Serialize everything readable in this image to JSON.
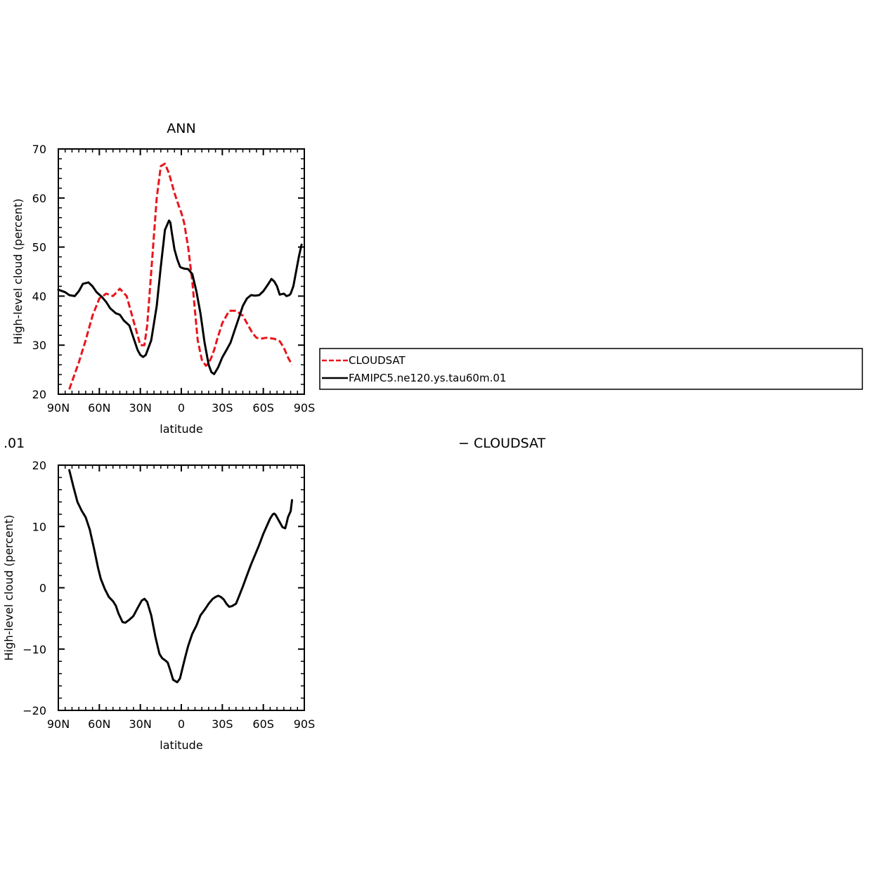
{
  "chart_data": [
    {
      "type": "line",
      "title": "ANN",
      "xlabel": "latitude",
      "ylabel": "High-level cloud (percent)",
      "xlim": [
        90,
        -90
      ],
      "ylim": [
        20,
        70
      ],
      "x_ticks": [
        90,
        60,
        30,
        0,
        -30,
        -60,
        -90
      ],
      "x_tick_labels": [
        "90N",
        "60N",
        "30N",
        "0",
        "30S",
        "60S",
        "90S"
      ],
      "y_ticks": [
        20,
        30,
        40,
        50,
        60,
        70
      ],
      "y_tick_labels": [
        "20",
        "30",
        "40",
        "50",
        "60",
        "70"
      ],
      "legend_position": "right",
      "series": [
        {
          "name": "CLOUDSAT",
          "color": "#e8141c",
          "dash": "dashed",
          "x": [
            82,
            75,
            70,
            65,
            60,
            55,
            50,
            45,
            40,
            35,
            30,
            27,
            25,
            22,
            18,
            15,
            12,
            9,
            7,
            5,
            2,
            0,
            -2,
            -5,
            -8,
            -10,
            -12,
            -15,
            -18,
            -20,
            -22,
            -24,
            -26,
            -30,
            -35,
            -40,
            -45,
            -48,
            -52,
            -55,
            -58,
            -60,
            -62,
            -65,
            -68,
            -72,
            -75,
            -78,
            -81
          ],
          "y": [
            21,
            26.5,
            31,
            36,
            39.5,
            40.5,
            40,
            41.5,
            40,
            35,
            30,
            30,
            34,
            45,
            60,
            66.5,
            67,
            65,
            63,
            61,
            58.5,
            57,
            55,
            50,
            43,
            37,
            31,
            27,
            25.8,
            26.3,
            27.5,
            29,
            31,
            34.5,
            37,
            37,
            36,
            34.5,
            32.5,
            31.5,
            31.3,
            31.4,
            31.5,
            31.4,
            31.3,
            30.8,
            29.5,
            27.5,
            26
          ]
        },
        {
          "name": "FAMIPC5.ne120.ys.tau60m.01",
          "color": "#000000",
          "dash": "solid",
          "x": [
            90,
            85,
            82,
            78,
            75,
            72,
            68,
            65,
            62,
            58,
            55,
            52,
            48,
            45,
            42,
            38,
            35,
            32,
            30,
            28,
            26,
            24,
            22,
            18,
            15,
            12,
            9,
            8,
            7,
            5,
            3,
            1,
            0,
            -2,
            -5,
            -8,
            -11,
            -14,
            -17,
            -20,
            -22,
            -24,
            -27,
            -30,
            -33,
            -36,
            -39,
            -42,
            -45,
            -48,
            -51,
            -54,
            -57,
            -60,
            -63,
            -66,
            -68,
            -70,
            -72,
            -75,
            -77,
            -79,
            -80,
            -82,
            -84,
            -86,
            -88
          ],
          "y": [
            41.3,
            40.8,
            40.2,
            40.0,
            41.0,
            42.5,
            42.8,
            42.0,
            40.8,
            39.8,
            38.8,
            37.5,
            36.5,
            36.2,
            35.0,
            34.0,
            31.5,
            29.0,
            28.0,
            27.6,
            28.0,
            29.5,
            31.0,
            38.0,
            46.0,
            53.5,
            55.4,
            55.0,
            53.0,
            49.5,
            47.5,
            46.0,
            45.8,
            45.6,
            45.5,
            44.5,
            41.0,
            36.5,
            30.5,
            26.0,
            24.5,
            24.1,
            25.5,
            27.5,
            29.0,
            30.5,
            33.0,
            35.5,
            38.0,
            39.5,
            40.2,
            40.1,
            40.2,
            41.0,
            42.2,
            43.5,
            43.0,
            42.0,
            40.3,
            40.5,
            40.0,
            40.2,
            40.5,
            42.0,
            45.0,
            48.0,
            50.5
          ]
        }
      ]
    },
    {
      "type": "line",
      "title": ".01",
      "title_suffix": "− CLOUDSAT",
      "xlabel": "latitude",
      "ylabel": "High-level cloud (percent)",
      "xlim": [
        90,
        -90
      ],
      "ylim": [
        -20,
        20
      ],
      "x_ticks": [
        90,
        60,
        30,
        0,
        -30,
        -60,
        -90
      ],
      "x_tick_labels": [
        "90N",
        "60N",
        "30N",
        "0",
        "30S",
        "60S",
        "90S"
      ],
      "y_ticks": [
        -20,
        -10,
        0,
        10,
        20
      ],
      "y_tick_labels": [
        "−20",
        "−10",
        "0",
        "10",
        "20"
      ],
      "series": [
        {
          "color": "#000000",
          "dash": "solid",
          "x": [
            82,
            79,
            76,
            73,
            70,
            67,
            64,
            61,
            59,
            56,
            53,
            50,
            48,
            46,
            43,
            41,
            38,
            35,
            32,
            29,
            27,
            25,
            22,
            19,
            16,
            14,
            12,
            10,
            8,
            6,
            3,
            1,
            -1,
            -3,
            -5,
            -8,
            -11,
            -14,
            -17,
            -20,
            -23,
            -25,
            -27,
            -29,
            -31,
            -33,
            -35,
            -37,
            -40,
            -42,
            -45,
            -48,
            -51,
            -54,
            -57,
            -60,
            -63,
            -65,
            -67,
            -68,
            -69,
            -70,
            -72,
            -74,
            -76,
            -77,
            -78,
            -80,
            -81
          ],
          "y": [
            19.2,
            16.5,
            14,
            12.6,
            11.5,
            9.5,
            6.5,
            3.3,
            1.5,
            -0.2,
            -1.5,
            -2.2,
            -2.9,
            -4.2,
            -5.6,
            -5.7,
            -5.2,
            -4.6,
            -3.3,
            -2.1,
            -1.8,
            -2.3,
            -4.5,
            -8.0,
            -10.8,
            -11.5,
            -11.8,
            -12.2,
            -13.5,
            -15,
            -15.4,
            -14.8,
            -13.0,
            -11.2,
            -9.5,
            -7.5,
            -6.2,
            -4.5,
            -3.6,
            -2.6,
            -1.8,
            -1.5,
            -1.3,
            -1.5,
            -1.9,
            -2.6,
            -3.1,
            -3.0,
            -2.6,
            -1.5,
            0.2,
            2.0,
            3.8,
            5.4,
            7.0,
            8.8,
            10.3,
            11.3,
            12.0,
            12.1,
            11.9,
            11.5,
            10.7,
            9.9,
            9.7,
            10.5,
            11.5,
            12.5,
            14.3
          ]
        }
      ]
    }
  ]
}
